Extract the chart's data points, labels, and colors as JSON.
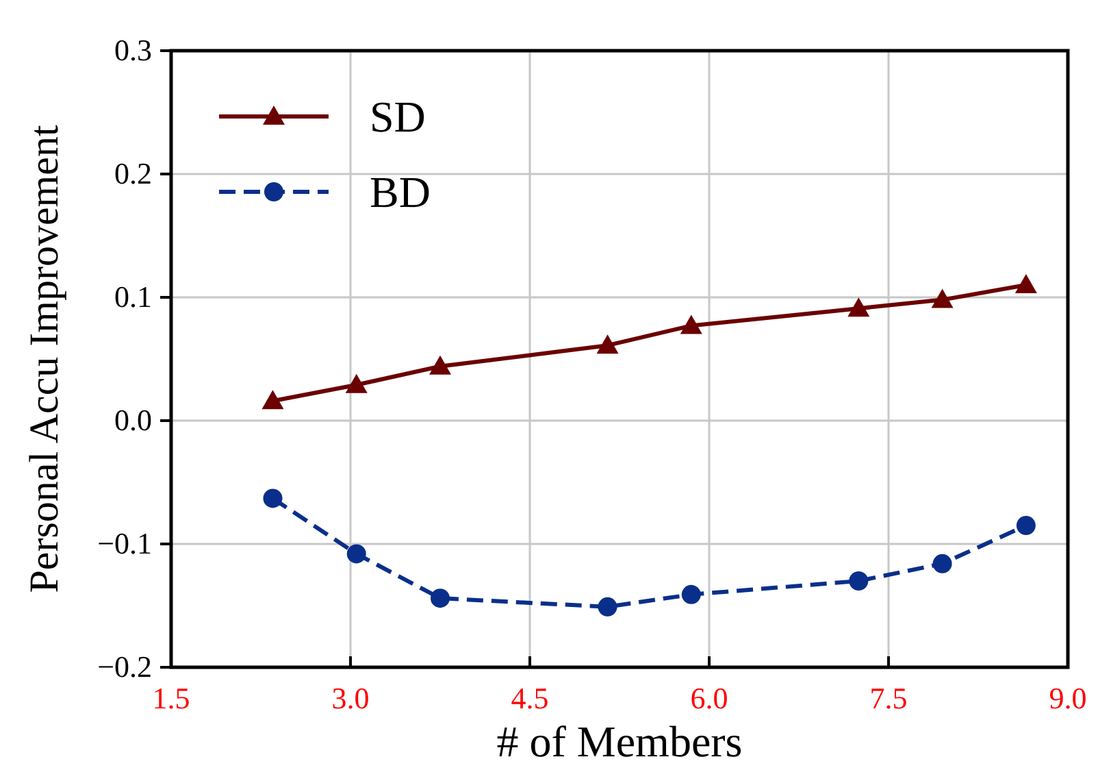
{
  "chart_data": {
    "type": "line",
    "xlabel": "# of Members",
    "ylabel": "Personal Accu Improvement",
    "x": [
      2.35,
      3.05,
      3.75,
      5.15,
      5.85,
      7.25,
      7.95,
      8.65
    ],
    "series": [
      {
        "name": "SD",
        "color": "#6b0000",
        "marker": "triangle",
        "line_style": "solid",
        "values": [
          0.016,
          0.029,
          0.044,
          0.061,
          0.077,
          0.091,
          0.098,
          0.11
        ]
      },
      {
        "name": "BD",
        "color": "#0a2f8a",
        "marker": "circle",
        "line_style": "dashed",
        "values": [
          -0.063,
          -0.108,
          -0.144,
          -0.151,
          -0.141,
          -0.13,
          -0.116,
          -0.085
        ]
      }
    ],
    "xlim": [
      1.5,
      9.0
    ],
    "xticks": [
      {
        "value": 1.5,
        "label": "1.5"
      },
      {
        "value": 3,
        "label": "3.0"
      },
      {
        "value": 4.5,
        "label": "4.5"
      },
      {
        "value": 6,
        "label": "6.0"
      },
      {
        "value": 7.5,
        "label": "7.5"
      },
      {
        "value": 9,
        "label": "9.0"
      }
    ],
    "ylim": [
      -0.2,
      0.3
    ],
    "yticks": [
      {
        "value": -0.2,
        "label": "−0.2"
      },
      {
        "value": -0.1,
        "label": "−0.1"
      },
      {
        "value": 0,
        "label": "0.0"
      },
      {
        "value": 0.1,
        "label": "0.1"
      },
      {
        "value": 0.2,
        "label": "0.2"
      },
      {
        "value": 0.3,
        "label": "0.3"
      }
    ],
    "grid": true,
    "legend": "top left"
  }
}
